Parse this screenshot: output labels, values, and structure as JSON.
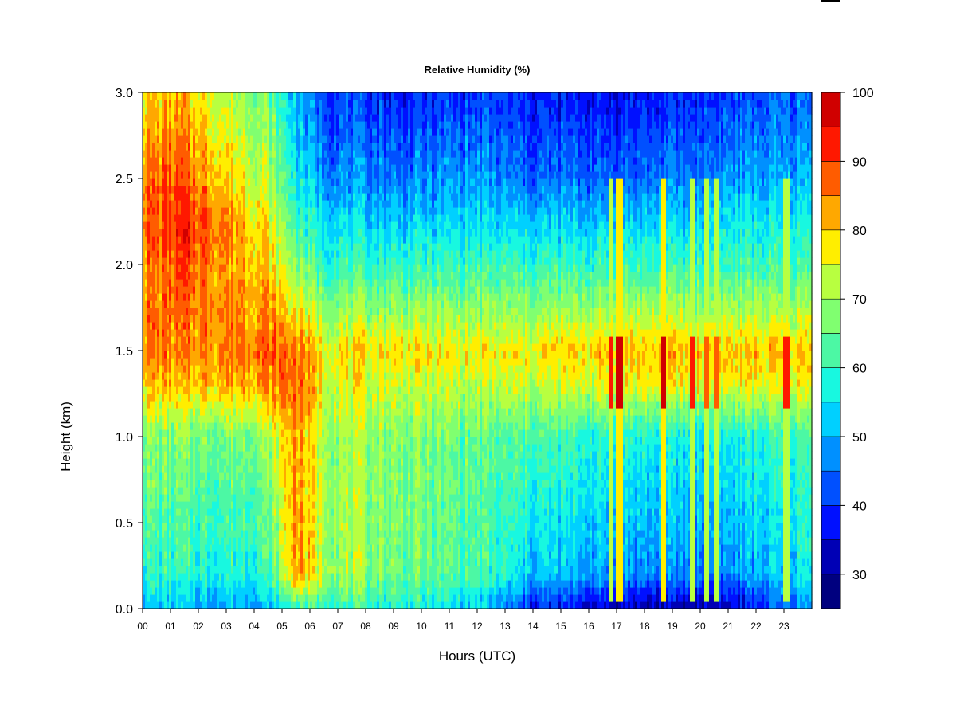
{
  "chart_data": {
    "type": "heatmap",
    "title": "Relative Humidity (%)",
    "xlabel": "Hours (UTC)",
    "ylabel": "Height (km)",
    "xlim": [
      0,
      24
    ],
    "ylim": [
      0,
      3.0
    ],
    "x_ticks": [
      "00",
      "01",
      "02",
      "03",
      "04",
      "05",
      "06",
      "07",
      "08",
      "09",
      "10",
      "11",
      "12",
      "13",
      "14",
      "15",
      "16",
      "17",
      "18",
      "19",
      "20",
      "21",
      "22",
      "23"
    ],
    "y_ticks": [
      "0.0",
      "0.5",
      "1.0",
      "1.5",
      "2.0",
      "2.5",
      "3.0"
    ],
    "colorbar": {
      "min": 25,
      "max": 100,
      "ticks": [
        "30",
        "40",
        "50",
        "60",
        "70",
        "80",
        "90",
        "100"
      ],
      "levels": [
        25,
        30,
        35,
        40,
        45,
        50,
        55,
        60,
        65,
        70,
        75,
        80,
        85,
        90,
        95,
        100
      ],
      "colors": [
        "#00007f",
        "#0000b5",
        "#0010ff",
        "#0050ff",
        "#0090ff",
        "#00d0ff",
        "#18f8e0",
        "#4cf8a4",
        "#80ff70",
        "#b8ff40",
        "#ffee00",
        "#ffa800",
        "#ff5c00",
        "#ff1800",
        "#d00000",
        "#800000"
      ]
    },
    "profiles": [
      {
        "hour": 0.0,
        "rh_by_height": [
          {
            "h": 0.0,
            "rh": 52
          },
          {
            "h": 0.2,
            "rh": 60
          },
          {
            "h": 1.0,
            "rh": 68
          },
          {
            "h": 1.3,
            "rh": 80
          },
          {
            "h": 1.5,
            "rh": 86
          },
          {
            "h": 2.0,
            "rh": 84
          },
          {
            "h": 2.2,
            "rh": 88
          },
          {
            "h": 2.5,
            "rh": 86
          },
          {
            "h": 3.0,
            "rh": 78
          }
        ]
      },
      {
        "hour": 1.5,
        "rh_by_height": [
          {
            "h": 0.0,
            "rh": 50
          },
          {
            "h": 0.2,
            "rh": 58
          },
          {
            "h": 1.0,
            "rh": 67
          },
          {
            "h": 1.3,
            "rh": 80
          },
          {
            "h": 1.5,
            "rh": 84
          },
          {
            "h": 2.0,
            "rh": 88
          },
          {
            "h": 2.2,
            "rh": 92
          },
          {
            "h": 2.5,
            "rh": 88
          },
          {
            "h": 3.0,
            "rh": 80
          }
        ]
      },
      {
        "hour": 3.0,
        "rh_by_height": [
          {
            "h": 0.0,
            "rh": 50
          },
          {
            "h": 0.2,
            "rh": 58
          },
          {
            "h": 1.0,
            "rh": 66
          },
          {
            "h": 1.3,
            "rh": 82
          },
          {
            "h": 1.5,
            "rh": 86
          },
          {
            "h": 2.0,
            "rh": 84
          },
          {
            "h": 2.2,
            "rh": 86
          },
          {
            "h": 2.5,
            "rh": 80
          },
          {
            "h": 3.0,
            "rh": 72
          }
        ]
      },
      {
        "hour": 4.5,
        "rh_by_height": [
          {
            "h": 0.0,
            "rh": 50
          },
          {
            "h": 0.2,
            "rh": 60
          },
          {
            "h": 1.0,
            "rh": 70
          },
          {
            "h": 1.3,
            "rh": 84
          },
          {
            "h": 1.5,
            "rh": 88
          },
          {
            "h": 2.0,
            "rh": 80
          },
          {
            "h": 2.2,
            "rh": 78
          },
          {
            "h": 2.5,
            "rh": 72
          },
          {
            "h": 3.0,
            "rh": 66
          }
        ]
      },
      {
        "hour": 5.5,
        "rh_by_height": [
          {
            "h": 0.0,
            "rh": 60
          },
          {
            "h": 0.2,
            "rh": 84
          },
          {
            "h": 1.0,
            "rh": 84
          },
          {
            "h": 1.3,
            "rh": 88
          },
          {
            "h": 1.5,
            "rh": 86
          },
          {
            "h": 2.0,
            "rh": 68
          },
          {
            "h": 2.2,
            "rh": 62
          },
          {
            "h": 2.5,
            "rh": 56
          },
          {
            "h": 3.0,
            "rh": 50
          }
        ]
      },
      {
        "hour": 6.5,
        "rh_by_height": [
          {
            "h": 0.0,
            "rh": 62
          },
          {
            "h": 0.2,
            "rh": 72
          },
          {
            "h": 1.0,
            "rh": 72
          },
          {
            "h": 1.3,
            "rh": 76
          },
          {
            "h": 1.5,
            "rh": 78
          },
          {
            "h": 2.0,
            "rh": 60
          },
          {
            "h": 2.2,
            "rh": 56
          },
          {
            "h": 2.5,
            "rh": 48
          },
          {
            "h": 3.0,
            "rh": 42
          }
        ]
      },
      {
        "hour": 9.0,
        "rh_by_height": [
          {
            "h": 0.0,
            "rh": 58
          },
          {
            "h": 0.2,
            "rh": 66
          },
          {
            "h": 1.0,
            "rh": 68
          },
          {
            "h": 1.3,
            "rh": 74
          },
          {
            "h": 1.5,
            "rh": 78
          },
          {
            "h": 2.0,
            "rh": 60
          },
          {
            "h": 2.2,
            "rh": 54
          },
          {
            "h": 2.5,
            "rh": 46
          },
          {
            "h": 3.0,
            "rh": 38
          }
        ]
      },
      {
        "hour": 12.0,
        "rh_by_height": [
          {
            "h": 0.0,
            "rh": 52
          },
          {
            "h": 0.2,
            "rh": 62
          },
          {
            "h": 1.0,
            "rh": 64
          },
          {
            "h": 1.3,
            "rh": 72
          },
          {
            "h": 1.5,
            "rh": 76
          },
          {
            "h": 2.0,
            "rh": 60
          },
          {
            "h": 2.2,
            "rh": 54
          },
          {
            "h": 2.5,
            "rh": 48
          },
          {
            "h": 3.0,
            "rh": 40
          }
        ]
      },
      {
        "hour": 14.0,
        "rh_by_height": [
          {
            "h": 0.0,
            "rh": 38
          },
          {
            "h": 0.2,
            "rh": 52
          },
          {
            "h": 1.0,
            "rh": 62
          },
          {
            "h": 1.3,
            "rh": 72
          },
          {
            "h": 1.5,
            "rh": 77
          },
          {
            "h": 2.0,
            "rh": 60
          },
          {
            "h": 2.2,
            "rh": 54
          },
          {
            "h": 2.5,
            "rh": 44
          },
          {
            "h": 3.0,
            "rh": 38
          }
        ]
      },
      {
        "hour": 17.0,
        "rh_by_height": [
          {
            "h": 0.0,
            "rh": 32
          },
          {
            "h": 0.2,
            "rh": 48
          },
          {
            "h": 1.0,
            "rh": 58
          },
          {
            "h": 1.3,
            "rh": 76
          },
          {
            "h": 1.5,
            "rh": 80
          },
          {
            "h": 2.0,
            "rh": 60
          },
          {
            "h": 2.2,
            "rh": 54
          },
          {
            "h": 2.5,
            "rh": 44
          },
          {
            "h": 3.0,
            "rh": 36
          }
        ]
      },
      {
        "hour": 19.0,
        "rh_by_height": [
          {
            "h": 0.0,
            "rh": 30
          },
          {
            "h": 0.2,
            "rh": 46
          },
          {
            "h": 1.0,
            "rh": 56
          },
          {
            "h": 1.3,
            "rh": 76
          },
          {
            "h": 1.5,
            "rh": 80
          },
          {
            "h": 2.0,
            "rh": 60
          },
          {
            "h": 2.2,
            "rh": 54
          },
          {
            "h": 2.5,
            "rh": 46
          },
          {
            "h": 3.0,
            "rh": 38
          }
        ]
      },
      {
        "hour": 21.0,
        "rh_by_height": [
          {
            "h": 0.0,
            "rh": 32
          },
          {
            "h": 0.2,
            "rh": 46
          },
          {
            "h": 1.0,
            "rh": 56
          },
          {
            "h": 1.3,
            "rh": 76
          },
          {
            "h": 1.5,
            "rh": 80
          },
          {
            "h": 2.0,
            "rh": 60
          },
          {
            "h": 2.2,
            "rh": 56
          },
          {
            "h": 2.5,
            "rh": 48
          },
          {
            "h": 3.0,
            "rh": 40
          }
        ]
      },
      {
        "hour": 23.9,
        "rh_by_height": [
          {
            "h": 0.0,
            "rh": 48
          },
          {
            "h": 0.2,
            "rh": 56
          },
          {
            "h": 1.0,
            "rh": 62
          },
          {
            "h": 1.3,
            "rh": 76
          },
          {
            "h": 1.5,
            "rh": 80
          },
          {
            "h": 2.0,
            "rh": 62
          },
          {
            "h": 2.2,
            "rh": 58
          },
          {
            "h": 2.5,
            "rh": 50
          },
          {
            "h": 3.0,
            "rh": 44
          }
        ]
      }
    ],
    "spikes": [
      {
        "hour": 16.8,
        "rh_max": 90
      },
      {
        "hour": 17.1,
        "rh_max": 95
      },
      {
        "hour": 18.7,
        "rh_max": 96
      },
      {
        "hour": 19.7,
        "rh_max": 90
      },
      {
        "hour": 20.2,
        "rh_max": 88
      },
      {
        "hour": 20.6,
        "rh_max": 88
      },
      {
        "hour": 23.1,
        "rh_max": 92
      }
    ]
  }
}
